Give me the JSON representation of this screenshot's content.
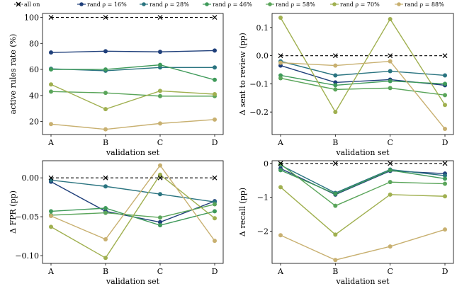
{
  "legend": [
    {
      "label": "all on",
      "color": "#000000",
      "marker": "x",
      "dashed": true
    },
    {
      "label": "rand ρ = 16%",
      "color": "#1f3f7a",
      "marker": "o"
    },
    {
      "label": "rand ρ = 28%",
      "color": "#2a7480",
      "marker": "o"
    },
    {
      "label": "rand ρ = 46%",
      "color": "#3f9a5a",
      "marker": "o"
    },
    {
      "label": "rand ρ = 58%",
      "color": "#5aa55a",
      "marker": "o"
    },
    {
      "label": "rand ρ = 70%",
      "color": "#a0b050",
      "marker": "o"
    },
    {
      "label": "rand ρ = 88%",
      "color": "#c8b070",
      "marker": "o"
    }
  ],
  "chart_data": [
    {
      "type": "line",
      "xlabel": "validation set",
      "ylabel": "active rules rate (%)",
      "categories": [
        "A",
        "B",
        "C",
        "D"
      ],
      "ylim": [
        10,
        103
      ],
      "yticks": [
        20,
        40,
        60,
        80,
        100
      ],
      "ytick_labels": [
        "20",
        "40",
        "60",
        "80",
        "100"
      ],
      "grid": false,
      "series": [
        {
          "name": "all on",
          "values": [
            100,
            100,
            100,
            100
          ]
        },
        {
          "name": "rand ρ = 16%",
          "values": [
            73,
            74,
            73.5,
            74.5
          ]
        },
        {
          "name": "rand ρ = 28%",
          "values": [
            60.5,
            59,
            61.5,
            61.5
          ]
        },
        {
          "name": "rand ρ = 46%",
          "values": [
            60,
            60,
            63.5,
            52
          ]
        },
        {
          "name": "rand ρ = 58%",
          "values": [
            43,
            42,
            39.5,
            39.5
          ]
        },
        {
          "name": "rand ρ = 70%",
          "values": [
            48.5,
            29.5,
            43.5,
            41
          ]
        },
        {
          "name": "rand ρ = 88%",
          "values": [
            18,
            14,
            18.5,
            21.5
          ]
        }
      ]
    },
    {
      "type": "line",
      "xlabel": "validation set",
      "ylabel": "Δ sent to review (pp)",
      "categories": [
        "A",
        "B",
        "C",
        "D"
      ],
      "ylim": [
        -0.28,
        0.15
      ],
      "yticks": [
        -0.2,
        -0.1,
        0.0,
        0.1
      ],
      "ytick_labels": [
        "−0.2",
        "−0.1",
        "0.0",
        "0.1"
      ],
      "grid": false,
      "series": [
        {
          "name": "all on",
          "values": [
            0,
            0,
            0,
            0
          ]
        },
        {
          "name": "rand ρ = 16%",
          "values": [
            -0.035,
            -0.095,
            -0.085,
            -0.105
          ]
        },
        {
          "name": "rand ρ = 28%",
          "values": [
            -0.02,
            -0.07,
            -0.055,
            -0.07
          ]
        },
        {
          "name": "rand ρ = 46%",
          "values": [
            -0.07,
            -0.105,
            -0.09,
            -0.1
          ]
        },
        {
          "name": "rand ρ = 58%",
          "values": [
            -0.08,
            -0.12,
            -0.115,
            -0.14
          ]
        },
        {
          "name": "rand ρ = 70%",
          "values": [
            0.135,
            -0.2,
            0.13,
            -0.175
          ]
        },
        {
          "name": "rand ρ = 88%",
          "values": [
            -0.025,
            -0.035,
            -0.02,
            -0.26
          ]
        }
      ]
    },
    {
      "type": "line",
      "xlabel": "validation set",
      "ylabel": "Δ FPR (pp)",
      "categories": [
        "A",
        "B",
        "C",
        "D"
      ],
      "ylim": [
        -0.11,
        0.022
      ],
      "yticks": [
        -0.1,
        -0.05,
        0.0
      ],
      "ytick_labels": [
        "−0.10",
        "−0.05",
        "0.00"
      ],
      "grid": false,
      "series": [
        {
          "name": "all on",
          "values": [
            0,
            0,
            0,
            0
          ]
        },
        {
          "name": "rand ρ = 16%",
          "values": [
            -0.005,
            -0.043,
            -0.057,
            -0.03
          ]
        },
        {
          "name": "rand ρ = 28%",
          "values": [
            -0.003,
            -0.011,
            -0.021,
            -0.031
          ]
        },
        {
          "name": "rand ρ = 46%",
          "values": [
            -0.043,
            -0.039,
            -0.061,
            -0.043
          ]
        },
        {
          "name": "rand ρ = 58%",
          "values": [
            -0.048,
            -0.045,
            -0.051,
            -0.034
          ]
        },
        {
          "name": "rand ρ = 70%",
          "values": [
            -0.063,
            -0.103,
            0.004,
            -0.052
          ]
        },
        {
          "name": "rand ρ = 88%",
          "values": [
            -0.049,
            -0.079,
            0.016,
            -0.081
          ]
        }
      ]
    },
    {
      "type": "line",
      "xlabel": "validation set",
      "ylabel": "Δ recall (pp)",
      "categories": [
        "A",
        "B",
        "C",
        "D"
      ],
      "ylim": [
        -2.95,
        0.08
      ],
      "yticks": [
        -2,
        -1,
        0
      ],
      "ytick_labels": [
        "−2",
        "−1",
        "0"
      ],
      "grid": false,
      "series": [
        {
          "name": "all on",
          "values": [
            0,
            0,
            0,
            0
          ]
        },
        {
          "name": "rand ρ = 16%",
          "values": [
            -0.15,
            -0.92,
            -0.22,
            -0.3
          ]
        },
        {
          "name": "rand ρ = 28%",
          "values": [
            -0.05,
            -0.87,
            -0.18,
            -0.36
          ]
        },
        {
          "name": "rand ρ = 46%",
          "values": [
            -0.2,
            -0.9,
            -0.2,
            -0.45
          ]
        },
        {
          "name": "rand ρ = 58%",
          "values": [
            -0.02,
            -1.25,
            -0.55,
            -0.6
          ]
        },
        {
          "name": "rand ρ = 70%",
          "values": [
            -0.7,
            -2.1,
            -0.92,
            -0.97
          ]
        },
        {
          "name": "rand ρ = 88%",
          "values": [
            -2.12,
            -2.85,
            -2.45,
            -1.95
          ]
        }
      ]
    }
  ]
}
